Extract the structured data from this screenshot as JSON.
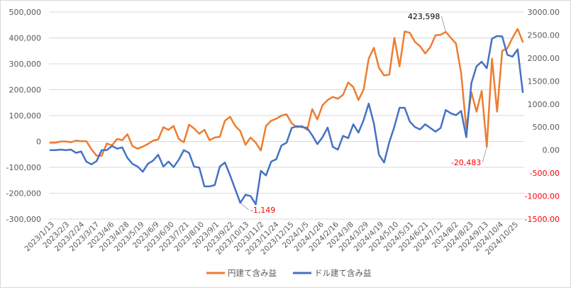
{
  "chart_data": {
    "type": "line",
    "title": "",
    "xlabel": "",
    "ylabel": "",
    "ylim_left": [
      -300000,
      500000
    ],
    "ylim_right": [
      -1500,
      3000
    ],
    "left_ticks": [
      "500,000",
      "400,000",
      "300,000",
      "200,000",
      "100,000",
      "0",
      "-100,000",
      "-200,000",
      "-300,000"
    ],
    "left_tick_values": [
      500000,
      400000,
      300000,
      200000,
      100000,
      0,
      -100000,
      -200000,
      -300000
    ],
    "right_ticks": [
      "3000.00",
      "2500.00",
      "2000.00",
      "1500.00",
      "1000.00",
      "500.00",
      "0.00",
      "-500.00",
      "-1000.00",
      "-1500.00"
    ],
    "right_tick_values": [
      3000,
      2500,
      2000,
      1500,
      1000,
      500,
      0,
      -500,
      -1000,
      -1500
    ],
    "grid": true,
    "legend": "bottom",
    "x_labels": [
      "2023/1/13",
      "2023/2/3",
      "2023/2/24",
      "2023/3/17",
      "2023/4/6",
      "2023/4/28",
      "2023/5/19",
      "2023/6/9",
      "2023/6/30",
      "2023/7/21",
      "2023/8/10",
      "2023/9/1",
      "2023/9/22",
      "2023/10/13",
      "2023/11/2",
      "2023/11/24",
      "2023/12/15",
      "2024/1/5",
      "2024/1/26",
      "2024/2/16",
      "2024/3/8",
      "2024/3/29",
      "2024/4/19",
      "2024/5/10",
      "2024/5/31",
      "2024/6/21",
      "2024/7/12",
      "2024/8/2",
      "2024/8/23",
      "2024/9/13",
      "2024/10/4",
      "2024/10/25"
    ],
    "series": [
      {
        "name": "円建て含み益",
        "axis": "left",
        "color": "#ed7d31",
        "values": [
          -5000,
          -5000,
          0,
          0,
          -3000,
          3000,
          1000,
          1000,
          -30000,
          -55000,
          -55000,
          -8000,
          -15000,
          10000,
          5000,
          28000,
          -18000,
          -28000,
          -20000,
          -10000,
          3000,
          8000,
          55000,
          45000,
          60000,
          10000,
          -3000,
          65000,
          50000,
          30000,
          45000,
          5000,
          15000,
          18000,
          80000,
          95000,
          60000,
          40000,
          -13000,
          15000,
          -5000,
          -35000,
          60000,
          80000,
          88000,
          100000,
          105000,
          70000,
          55000,
          60000,
          45000,
          125000,
          85000,
          140000,
          160000,
          172000,
          165000,
          180000,
          228000,
          210000,
          160000,
          200000,
          320000,
          362000,
          285000,
          255000,
          258000,
          400000,
          290000,
          425000,
          420000,
          385000,
          368000,
          340000,
          365000,
          410000,
          412000,
          423598,
          400000,
          378000,
          265000,
          50000,
          190000,
          115000,
          195000,
          -20483,
          320000,
          115000,
          350000,
          360000,
          400000,
          435000,
          385000
        ]
      },
      {
        "name": "ドル建て含み益",
        "axis": "right",
        "color": "#4472c4",
        "values": [
          0,
          0,
          10,
          0,
          10,
          -60,
          -30,
          -250,
          -310,
          -240,
          0,
          0,
          90,
          30,
          60,
          -170,
          -300,
          -360,
          -470,
          -300,
          -230,
          -100,
          -360,
          -250,
          -370,
          -210,
          0,
          -60,
          -360,
          -380,
          -790,
          -790,
          -760,
          -360,
          -270,
          -550,
          -850,
          -1149,
          -970,
          -1000,
          -1180,
          -450,
          -550,
          -250,
          -200,
          100,
          160,
          480,
          520,
          500,
          480,
          320,
          130,
          280,
          490,
          70,
          10,
          310,
          260,
          560,
          380,
          650,
          1010,
          580,
          -100,
          -270,
          170,
          510,
          920,
          920,
          620,
          500,
          450,
          560,
          480,
          400,
          480,
          870,
          800,
          760,
          850,
          280,
          1460,
          1820,
          1920,
          1780,
          2420,
          2480,
          2470,
          2070,
          2030,
          2190,
          1260
        ]
      }
    ],
    "annotations": [
      {
        "text": "423,598",
        "series": "円建て含み益",
        "point_index": 77,
        "color": "#000000"
      },
      {
        "text": "-20,483",
        "series": "円建て含み益",
        "point_index": 85,
        "color": "#ff0000"
      },
      {
        "text": "-1,149",
        "series": "ドル建て含み益",
        "point_index": 37,
        "color": "#ff0000"
      }
    ],
    "colors": {
      "grid": "#d9d9d9",
      "left_tick_label": "#595959",
      "right_tick_negative": "#ff0000",
      "right_tick_positive": "#595959",
      "leader_line": "#a6a6a6"
    }
  }
}
